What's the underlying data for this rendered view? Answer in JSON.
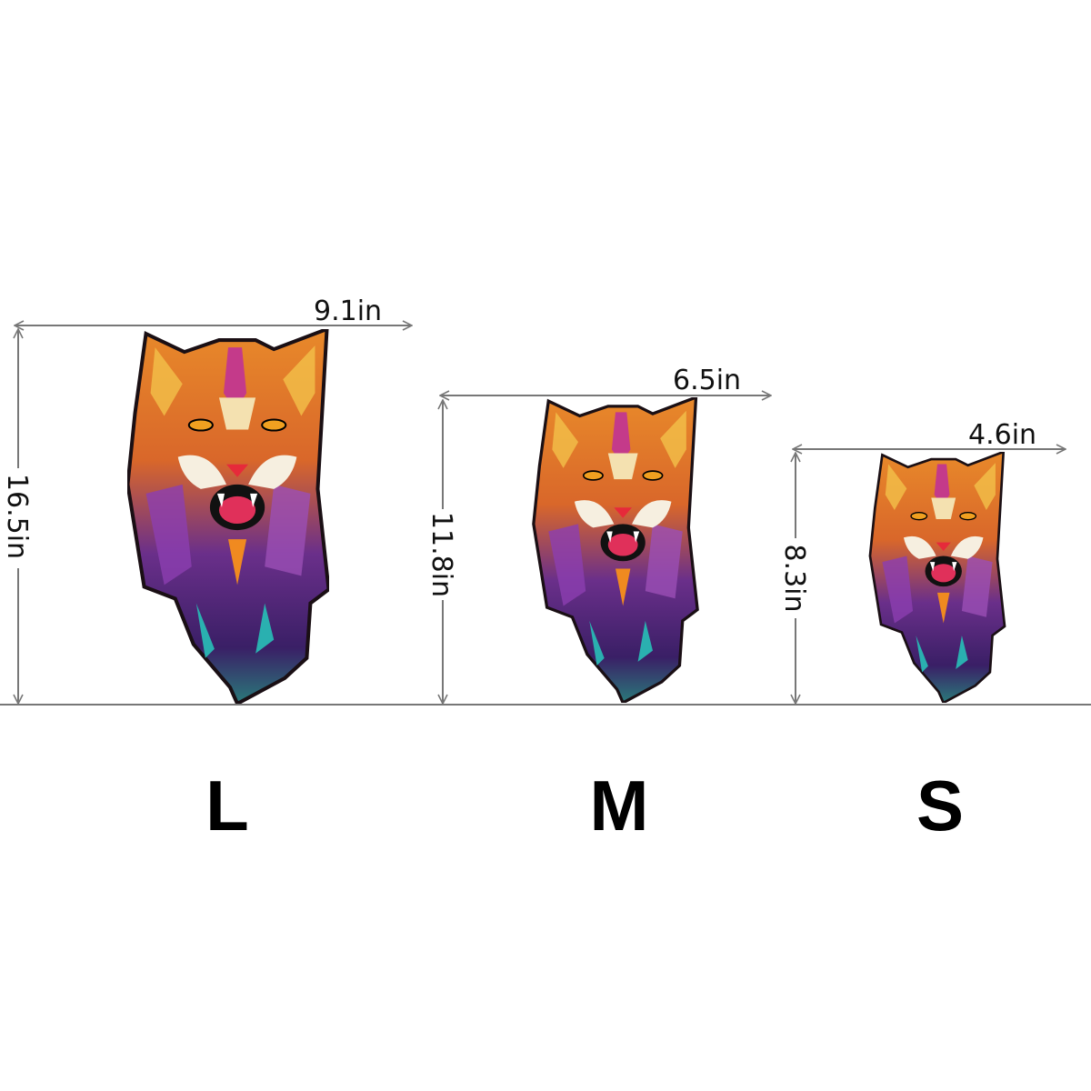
{
  "sizes": [
    {
      "label": "L",
      "width": "9.1in",
      "height": "16.5in"
    },
    {
      "label": "M",
      "width": "6.5in",
      "height": "11.8in"
    },
    {
      "label": "S",
      "width": "4.6in",
      "height": "8.3in"
    }
  ],
  "colors": {
    "line": "#777777",
    "text": "#111111",
    "puzzle_orange": "#e07a1f",
    "puzzle_purple": "#4b2a7a"
  }
}
